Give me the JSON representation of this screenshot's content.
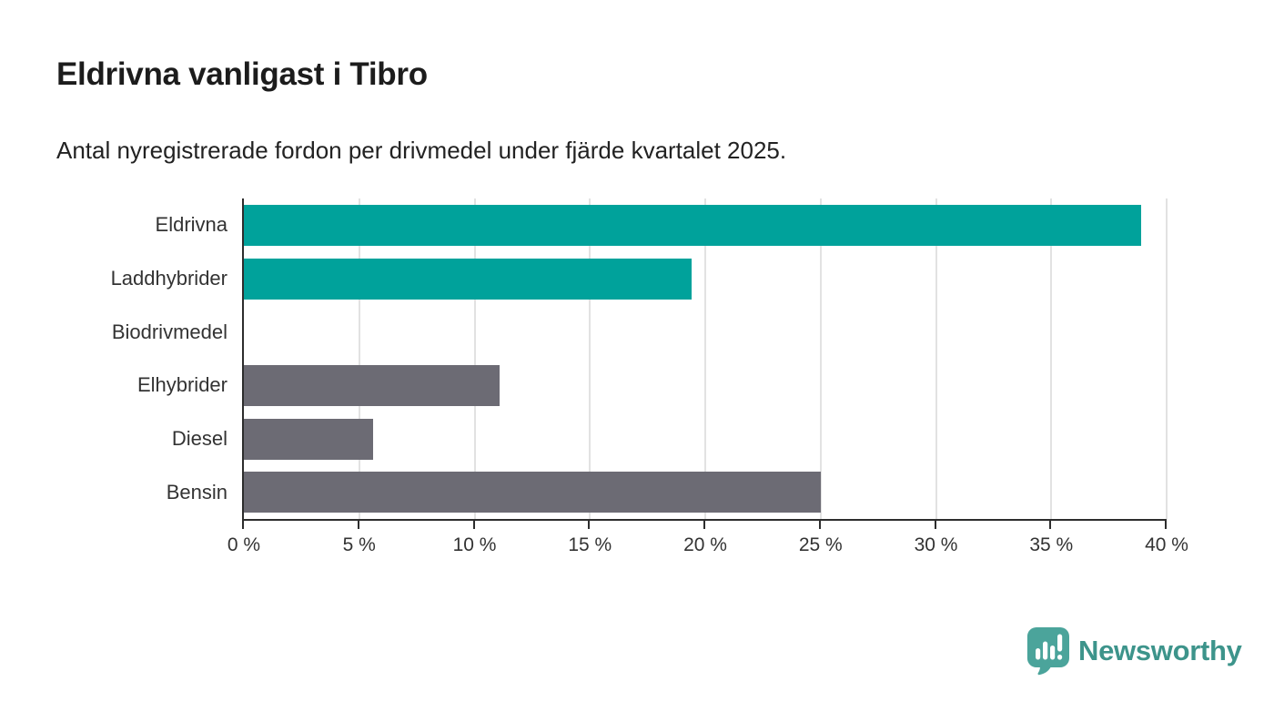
{
  "header": {
    "title": "Eldrivna vanligast i Tibro",
    "subtitle": "Antal nyregistrerade fordon per drivmedel under fjärde kvartalet 2025."
  },
  "chart_data": {
    "type": "bar",
    "orientation": "horizontal",
    "title": "Eldrivna vanligast i Tibro",
    "subtitle": "Antal nyregistrerade fordon per drivmedel under fjärde kvartalet 2025.",
    "categories": [
      "Eldrivna",
      "Laddhybrider",
      "Biodrivmedel",
      "Elhybrider",
      "Diesel",
      "Bensin"
    ],
    "values": [
      38.9,
      19.4,
      0,
      11.1,
      5.6,
      25.0
    ],
    "unit": "%",
    "bar_colors": [
      "#00a29b",
      "#00a29b",
      "#6c6b74",
      "#6c6b74",
      "#6c6b74",
      "#6c6b74"
    ],
    "highlight_color": "#00a29b",
    "base_color": "#6c6b74",
    "xlim": [
      0,
      40
    ],
    "x_ticks": [
      0,
      5,
      10,
      15,
      20,
      25,
      30,
      35,
      40
    ],
    "x_tick_labels": [
      "0 %",
      "5 %",
      "10 %",
      "15 %",
      "20 %",
      "25 %",
      "30 %",
      "35 %",
      "40 %"
    ],
    "grid": "vertical",
    "gridline_color": "#e2e2e2",
    "axis_color": "#2d2d2d",
    "label_color": "#333333"
  },
  "footer": {
    "brand": "Newsworthy",
    "brand_text_color": "#3d948b",
    "logo_mark_color": "#4ba49b"
  }
}
